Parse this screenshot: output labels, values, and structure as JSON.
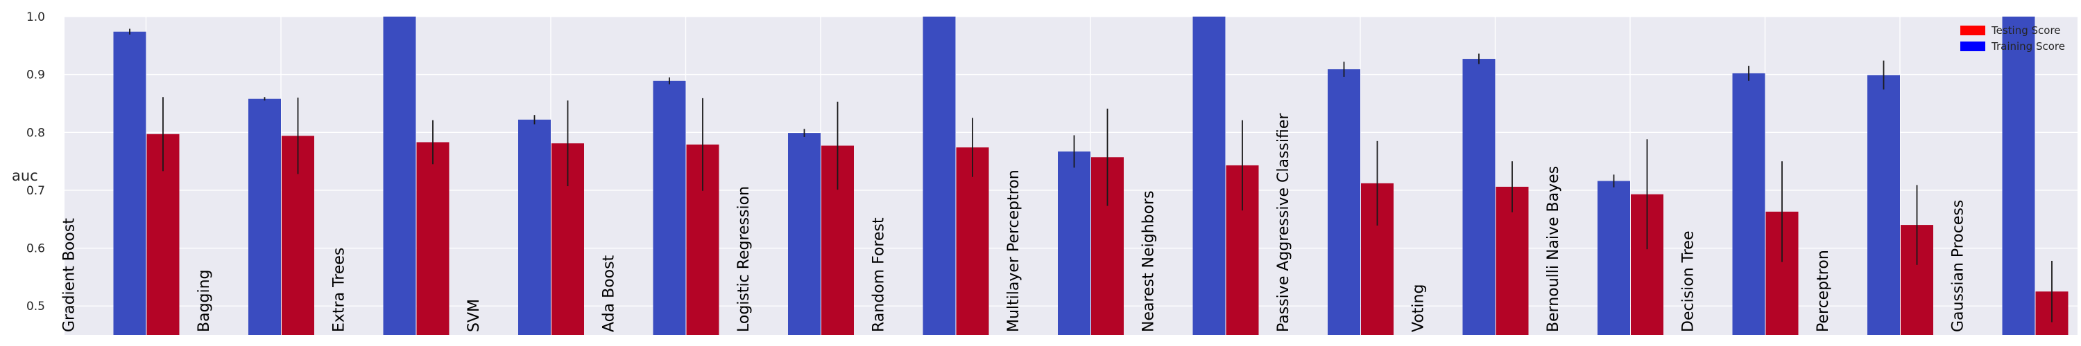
{
  "chart_data": {
    "type": "bar",
    "ylabel": "auc",
    "xlabel": "",
    "ylim": [
      0.45,
      1.0
    ],
    "yticks": [
      "0.5",
      "0.6",
      "0.7",
      "0.8",
      "0.9",
      "1.0"
    ],
    "grid": true,
    "legend_position": "top-right",
    "categories": [
      "Gradient Boost",
      "Bagging",
      "Extra Trees",
      "SVM",
      "Ada Boost",
      "Logistic Regression",
      "Random Forest",
      "Multilayer Perceptron",
      "Nearest Neighbors",
      "Passive Aggressive Classifier",
      "Voting",
      "Bernoulli Naive Bayes",
      "Decision Tree",
      "Perceptron",
      "Gaussian Process"
    ],
    "series": [
      {
        "name": "Training Score",
        "color": "#3a4cc0",
        "values": [
          0.974,
          0.858,
          1.0,
          0.822,
          0.889,
          0.799,
          1.0,
          0.767,
          1.0,
          0.909,
          0.927,
          0.716,
          0.902,
          0.899,
          1.0
        ],
        "errors": [
          0.005,
          0.003,
          0.0,
          0.008,
          0.006,
          0.007,
          0.0,
          0.028,
          0.0,
          0.013,
          0.009,
          0.011,
          0.013,
          0.025,
          0.0
        ]
      },
      {
        "name": "Testing Score",
        "color": "#b40426",
        "values": [
          0.797,
          0.794,
          0.783,
          0.781,
          0.779,
          0.777,
          0.774,
          0.757,
          0.743,
          0.712,
          0.706,
          0.693,
          0.663,
          0.64,
          0.525
        ],
        "errors": [
          0.064,
          0.066,
          0.038,
          0.074,
          0.08,
          0.076,
          0.051,
          0.084,
          0.078,
          0.073,
          0.044,
          0.095,
          0.087,
          0.069,
          0.053
        ]
      }
    ]
  }
}
